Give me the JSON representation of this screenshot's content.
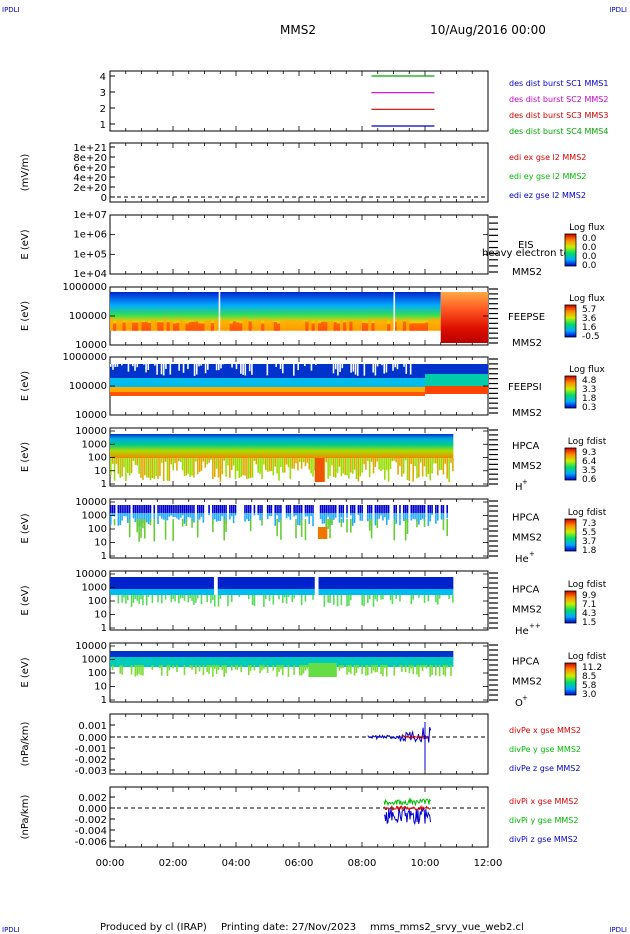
{
  "header": {
    "corner_left": "IPDLI",
    "corner_right": "IPDLI",
    "spacecraft": "MMS2",
    "datetime": "10/Aug/2016 00:00"
  },
  "footer": {
    "corner_left": "IPDLI",
    "corner_right": "IPDLI",
    "produced_by": "Produced by cl (IRAP)",
    "printing_date": "Printing date: 27/Nov/2023",
    "filename": "mms_mms2_srvy_vue_web2.cl"
  },
  "colors": {
    "mms1": "#0000cc",
    "mms2": "#cc00cc",
    "mms3": "#cc0000",
    "mms4": "#00aa00",
    "x_comp": "#dd0000",
    "y_comp": "#00bb00",
    "z_comp": "#0000cc"
  },
  "time_axis": {
    "ticks": [
      "00:00",
      "02:00",
      "04:00",
      "06:00",
      "08:00",
      "10:00",
      "12:00"
    ],
    "range_hours": [
      0,
      12
    ]
  },
  "panels": {
    "burst": {
      "yticks": [
        "4",
        "3",
        "2",
        "1"
      ],
      "legend": [
        "des dist burst SC1 MMS1",
        "des dist burst SC2 MMS2",
        "des dist burst SC3 MMS3",
        "des dist burst SC4 MMS4"
      ]
    },
    "edi": {
      "ylabel": "(mV/m)",
      "yticks": [
        "1e+21",
        "8e+20",
        "6e+20",
        "4e+20",
        "2e+20",
        "0"
      ],
      "legend": [
        "edi ex gse l2 MMS2",
        "edi ey gse l2 MMS2",
        "edi ez gse l2 MMS2"
      ]
    },
    "eis": {
      "ylabel": "E (eV)",
      "yticks": [
        "1e+07",
        "1e+06",
        "1e+05",
        "1e+04"
      ],
      "name": "EIS",
      "extra": "heavy electron to",
      "sc": "MMS2",
      "cbar_title": "Log flux",
      "cbar_ticks": [
        "0.0",
        "0.0",
        "0.0",
        "0.0"
      ]
    },
    "feepse": {
      "ylabel": "E (eV)",
      "yticks": [
        "1000000",
        "100000",
        "10000"
      ],
      "name": "FEEPSE",
      "sc": "MMS2",
      "cbar_title": "Log flux",
      "cbar_ticks": [
        "5.7",
        "3.6",
        "1.6",
        "-0.5"
      ]
    },
    "feepsi": {
      "ylabel": "E (eV)",
      "yticks": [
        "1000000",
        "100000",
        "10000"
      ],
      "name": "FEEPSI",
      "sc": "MMS2",
      "cbar_title": "Log flux",
      "cbar_ticks": [
        "4.8",
        "3.3",
        "1.8",
        "0.3"
      ]
    },
    "hpca_h": {
      "ylabel": "E (eV)",
      "yticks": [
        "10000",
        "1000",
        "100",
        "10",
        "1"
      ],
      "name": "HPCA",
      "sc": "MMS2",
      "species": "H",
      "charge": "+",
      "cbar_title": "Log fdist",
      "cbar_ticks": [
        "9.3",
        "6.4",
        "3.5",
        "0.6"
      ]
    },
    "hpca_he": {
      "ylabel": "E (eV)",
      "yticks": [
        "10000",
        "1000",
        "100",
        "10",
        "1"
      ],
      "name": "HPCA",
      "sc": "MMS2",
      "species": "He",
      "charge": "+",
      "cbar_title": "Log fdist",
      "cbar_ticks": [
        "7.3",
        "5.5",
        "3.7",
        "1.8"
      ]
    },
    "hpca_hepp": {
      "ylabel": "E (eV)",
      "yticks": [
        "10000",
        "1000",
        "100",
        "10",
        "1"
      ],
      "name": "HPCA",
      "sc": "MMS2",
      "species": "He",
      "charge": "++",
      "cbar_title": "Log fdist",
      "cbar_ticks": [
        "9.9",
        "7.1",
        "4.3",
        "1.5"
      ]
    },
    "hpca_o": {
      "ylabel": "E (eV)",
      "yticks": [
        "10000",
        "1000",
        "100",
        "10",
        "1"
      ],
      "name": "HPCA",
      "sc": "MMS2",
      "species": "O",
      "charge": "+",
      "cbar_title": "Log fdist",
      "cbar_ticks": [
        "11.2",
        "8.5",
        "5.8",
        "3.0"
      ]
    },
    "divpe": {
      "ylabel": "(nPa/km)",
      "yticks": [
        "0.001",
        "0.000",
        "-0.001",
        "-0.002",
        "-0.003"
      ],
      "legend": [
        "divPe x gse MMS2",
        "divPe y gse MMS2",
        "divPe z gse MMS2"
      ]
    },
    "divpi": {
      "ylabel": "(nPa/km)",
      "yticks": [
        "0.002",
        "0.000",
        "-0.002",
        "-0.004",
        "-0.006"
      ],
      "legend": [
        "divPi x gse MMS2",
        "divPi y gse MMS2",
        "divPi z gse MMS2"
      ]
    }
  },
  "chart_data": {
    "type": "line",
    "x_unit": "hours since 10/Aug/2016 00:00",
    "burst_intervals": [
      {
        "name": "des dist burst SC1 MMS1",
        "level": 1,
        "start": 8.3,
        "end": 10.3
      },
      {
        "name": "des dist burst SC2 MMS2",
        "level": 2,
        "start": 8.3,
        "end": 10.3
      },
      {
        "name": "des dist burst SC3 MMS3",
        "level": 3,
        "start": 8.3,
        "end": 10.3
      },
      {
        "name": "des dist burst SC4 MMS4",
        "level": 4,
        "start": 8.3,
        "end": 10.3
      }
    ],
    "spectrogram_coverage_hours": {
      "feepse": [
        0,
        12
      ],
      "feepsi": [
        0,
        12
      ],
      "hpca": [
        0,
        10.9
      ]
    }
  }
}
